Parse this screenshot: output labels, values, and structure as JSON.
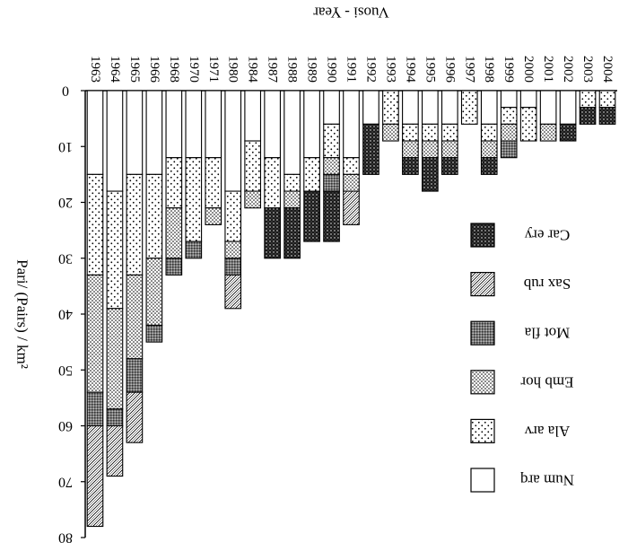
{
  "chart_data": {
    "type": "bar",
    "stacked": true,
    "orientation": "vertical-inverted",
    "xlabel": "Vuosi - Year",
    "ylabel": "Pari/ (Pairs) / km²",
    "ylim": [
      0,
      80
    ],
    "y_ticks": [
      0,
      10,
      20,
      30,
      40,
      50,
      60,
      70,
      80
    ],
    "grid": false,
    "legend_position": "right",
    "categories": [
      "1963",
      "1964",
      "1965",
      "1966",
      "1968",
      "1970",
      "1971",
      "1980",
      "1984",
      "1987",
      "1988",
      "1989",
      "1990",
      "1991",
      "1992",
      "1993",
      "1994",
      "1995",
      "1996",
      "1997",
      "1998",
      "1999",
      "2000",
      "2001",
      "2002",
      "2003",
      "2004"
    ],
    "series": [
      {
        "name": "Num arq",
        "pattern": "white",
        "values": [
          15,
          18,
          15,
          15,
          12,
          12,
          12,
          18,
          9,
          12,
          15,
          12,
          6,
          12,
          6,
          0,
          6,
          6,
          6,
          0,
          6,
          3,
          3,
          6,
          6,
          0,
          0
        ]
      },
      {
        "name": "Ala arv",
        "pattern": "dots",
        "values": [
          18,
          21,
          18,
          15,
          9,
          15,
          9,
          9,
          9,
          9,
          3,
          6,
          6,
          3,
          0,
          6,
          3,
          3,
          3,
          6,
          3,
          3,
          6,
          0,
          0,
          3,
          3
        ]
      },
      {
        "name": "Emb hor",
        "pattern": "dense-dots",
        "values": [
          21,
          18,
          15,
          12,
          9,
          0,
          3,
          3,
          3,
          0,
          3,
          0,
          3,
          3,
          0,
          3,
          3,
          3,
          3,
          0,
          3,
          3,
          0,
          3,
          0,
          0,
          0
        ]
      },
      {
        "name": "Mot fla",
        "pattern": "grid",
        "values": [
          6,
          3,
          6,
          3,
          3,
          3,
          0,
          3,
          0,
          0,
          0,
          0,
          3,
          0,
          0,
          0,
          0,
          0,
          0,
          0,
          0,
          3,
          0,
          0,
          0,
          0,
          0
        ]
      },
      {
        "name": "Sax rub",
        "pattern": "hatch",
        "values": [
          18,
          9,
          9,
          0,
          0,
          0,
          0,
          6,
          0,
          0,
          0,
          0,
          0,
          6,
          0,
          0,
          0,
          0,
          0,
          0,
          0,
          0,
          0,
          0,
          0,
          0,
          0
        ]
      },
      {
        "name": "Car ery",
        "pattern": "dark",
        "values": [
          0,
          0,
          0,
          0,
          0,
          0,
          0,
          0,
          0,
          9,
          9,
          9,
          9,
          0,
          9,
          0,
          3,
          6,
          3,
          0,
          3,
          0,
          0,
          0,
          3,
          3,
          3
        ]
      }
    ]
  }
}
